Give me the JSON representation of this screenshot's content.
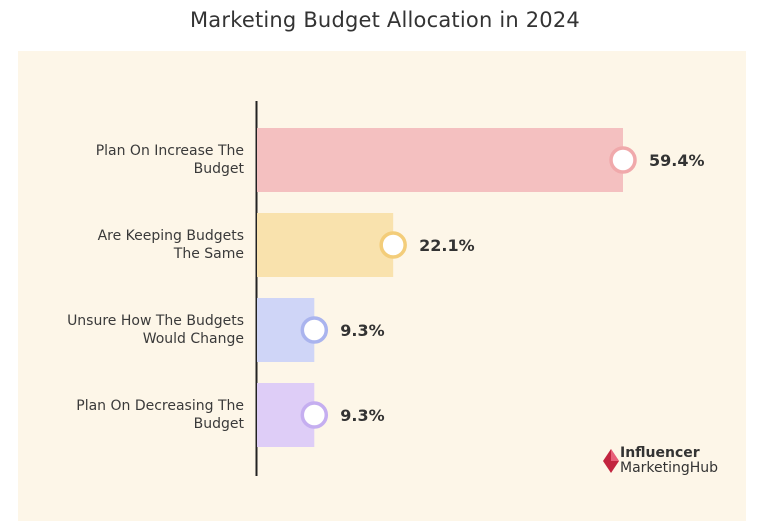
{
  "chart_data": {
    "type": "bar",
    "orientation": "horizontal",
    "title": "Marketing Budget Allocation in 2024",
    "categories": [
      "Plan On Increase The Budget",
      "Are Keeping Budgets The Same",
      "Unsure How The Budgets Would Change",
      "Plan On Decreasing The Budget"
    ],
    "category_lines": [
      [
        "Plan On Increase The",
        "Budget"
      ],
      [
        "Are Keeping Budgets",
        "The Same"
      ],
      [
        "Unsure How The Budgets",
        "Would Change"
      ],
      [
        "Plan On Decreasing The",
        "Budget"
      ]
    ],
    "values": [
      59.4,
      22.1,
      9.3,
      9.3
    ],
    "value_labels": [
      "59.4%",
      "22.1%",
      "9.3%",
      "9.3%"
    ],
    "colors": [
      "#f4c0c0",
      "#f9e2ad",
      "#cfd5f7",
      "#decdf7"
    ],
    "ring_colors": [
      "#f0a9ab",
      "#f3cd7a",
      "#aab4ee",
      "#c5aef0"
    ],
    "xlim": [
      0,
      59.4
    ],
    "grid": false,
    "legend": "none"
  },
  "branding": {
    "line1": "Influencer",
    "line2": "MarketingHub",
    "colors": [
      "#c2243f",
      "#e8607a"
    ]
  }
}
